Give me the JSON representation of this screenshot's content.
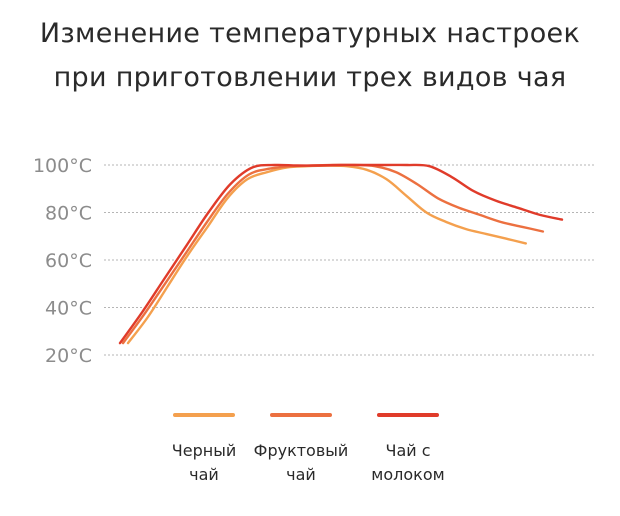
{
  "chart_data": {
    "type": "line",
    "title_lines": [
      "Изменение температурных настроек",
      "при приготовлении трех видов чая"
    ],
    "y_ticks": [
      "100°C",
      "80°C",
      "60°C",
      "40°C",
      "20°C"
    ],
    "y_tick_values": [
      100,
      80,
      60,
      40,
      20
    ],
    "ylim": [
      20,
      100
    ],
    "grid": true,
    "legend_position": "bottom",
    "series": [
      {
        "name": "Черный чай",
        "color": "#f4a04e",
        "x": [
          0,
          5,
          10,
          15,
          20,
          25,
          30,
          35,
          40,
          45,
          50,
          55,
          60,
          65,
          70,
          75,
          80,
          85,
          90,
          95,
          100
        ],
        "y": [
          25,
          36,
          49,
          62,
          74,
          86,
          94,
          97,
          99,
          99.5,
          99.7,
          99.5,
          98,
          94,
          87,
          80,
          76,
          73,
          71,
          69,
          67
        ]
      },
      {
        "name": "Фруктовый чай",
        "color": "#ec7040",
        "x": [
          0,
          5,
          10,
          15,
          20,
          25,
          30,
          35,
          40,
          45,
          50,
          55,
          60,
          65,
          70,
          75,
          80,
          85,
          90,
          95,
          100
        ],
        "y": [
          25,
          37,
          50,
          63,
          76,
          88,
          96,
          98.5,
          99.5,
          99.8,
          100,
          100,
          99.5,
          97,
          92,
          86,
          82,
          79,
          76,
          74,
          72
        ]
      },
      {
        "name": "Чай с молоком",
        "color": "#e03b2a",
        "x": [
          0,
          5,
          10,
          15,
          20,
          25,
          30,
          35,
          40,
          45,
          50,
          55,
          60,
          65,
          70,
          75,
          80,
          85,
          90,
          95,
          100
        ],
        "y": [
          25,
          38,
          52,
          66,
          80,
          92,
          99,
          100,
          99.8,
          99.8,
          100,
          100,
          100,
          100,
          99.5,
          95,
          89,
          85,
          82,
          79,
          77
        ]
      }
    ]
  },
  "legend": [
    {
      "line1": "Черный",
      "line2": "чай",
      "color": "#f4a04e"
    },
    {
      "line1": "Фруктовый",
      "line2": "чай",
      "color": "#ec7040"
    },
    {
      "line1": "Чай с",
      "line2": "молоком",
      "color": "#e03b2a"
    }
  ]
}
